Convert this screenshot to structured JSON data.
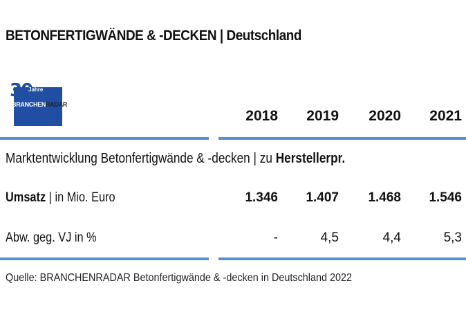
{
  "header": {
    "title": "BETONFERTIGWÄNDE & -DECKEN | Deutschland"
  },
  "logo": {
    "number": "30",
    "jahre": "Jahre",
    "brand_part1": "BRANCHEN",
    "brand_part2": "RADAR"
  },
  "table": {
    "years": [
      "2018",
      "2019",
      "2020",
      "2021"
    ],
    "subtitle_regular": "Marktentwicklung Betonfertigwände & -decken | zu ",
    "subtitle_bold": "Herstellerpr.",
    "rows": [
      {
        "label_bold": "Umsatz",
        "label_regular": " | in Mio. Euro",
        "values": [
          "1.346",
          "1.407",
          "1.468",
          "1.546"
        ]
      },
      {
        "label_regular": "Abw. geg. VJ in %",
        "values": [
          "-",
          "4,5",
          "4,4",
          "5,3"
        ]
      }
    ]
  },
  "footer": {
    "source": "Quelle: BRANCHENRADAR Betonfertigwände & -decken in Deutschland 2022"
  },
  "colors": {
    "accent_bar": "#5a8fd3",
    "logo_blue": "#1f4ea3"
  }
}
